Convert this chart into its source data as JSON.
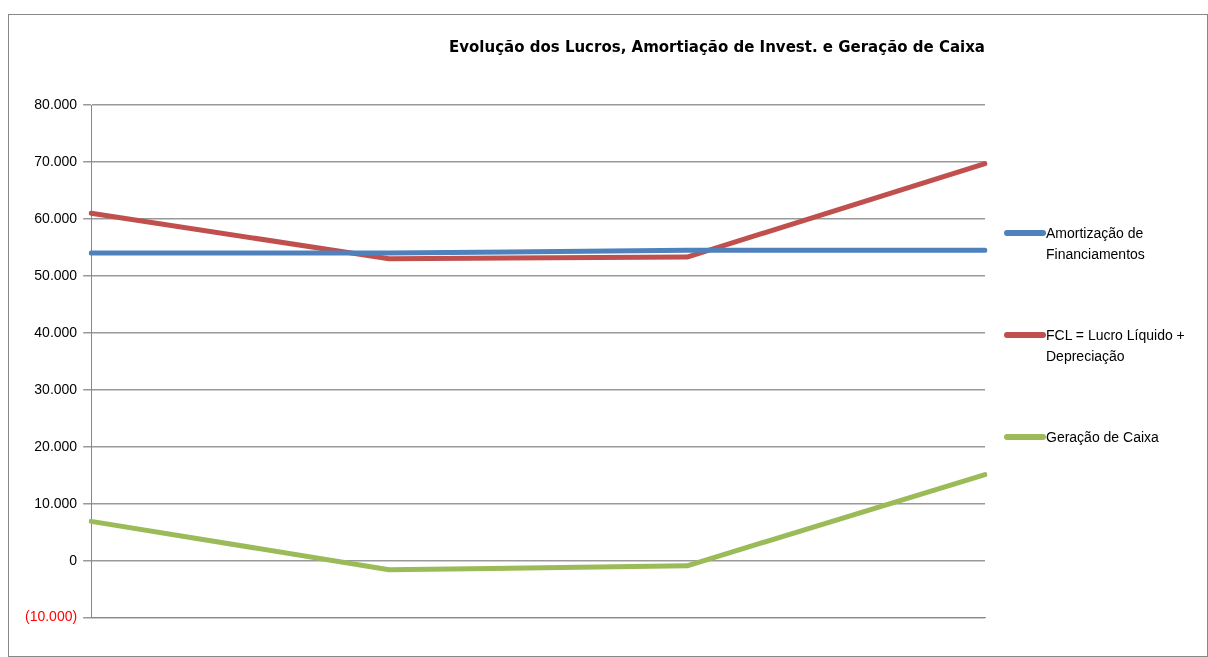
{
  "chart_data": {
    "type": "line",
    "title": "Evolução dos Lucros, Amortiação de Invest. e Geração de Caixa",
    "categories": [
      null,
      null,
      null,
      null
    ],
    "series": [
      {
        "name": "Amortização de Financiamentos",
        "color": "#4f81bd",
        "values": [
          54000,
          54000,
          54500,
          54500
        ]
      },
      {
        "name": "FCL = Lucro Líquido + Depreciação",
        "color": "#c0504d",
        "values": [
          61000,
          53000,
          53300,
          69700
        ]
      },
      {
        "name": "Geração de Caixa",
        "color": "#9bbb59",
        "values": [
          6900,
          -1600,
          -900,
          15100
        ]
      }
    ],
    "ylim": [
      -10000,
      80000
    ],
    "yticks": [
      {
        "value": -10000,
        "label": "(10.000)"
      },
      {
        "value": 0,
        "label": "0"
      },
      {
        "value": 10000,
        "label": "10.000"
      },
      {
        "value": 20000,
        "label": "20.000"
      },
      {
        "value": 30000,
        "label": "30.000"
      },
      {
        "value": 40000,
        "label": "40.000"
      },
      {
        "value": 50000,
        "label": "50.000"
      },
      {
        "value": 60000,
        "label": "60.000"
      },
      {
        "value": 70000,
        "label": "70.000"
      },
      {
        "value": 80000,
        "label": "80.000"
      }
    ],
    "grid": "y",
    "legend": "right",
    "marker": "none",
    "line_style": "solid"
  }
}
